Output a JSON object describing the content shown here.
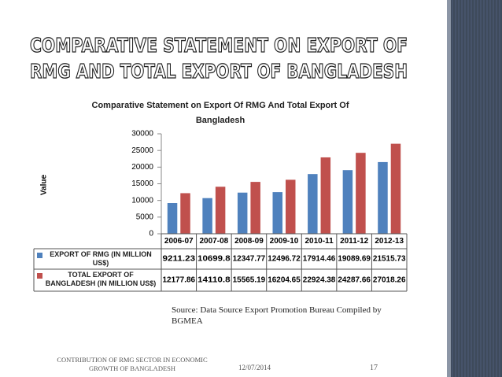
{
  "slide": {
    "heading": [
      "COMPARATIVE STATEMENT ON EXPORT OF",
      "RMG AND TOTAL EXPORT OF BANGLADESH"
    ],
    "source": "Source: Data Source Export Promotion Bureau  Compiled by BGMEA",
    "footer": "CONTRIBUTION OF RMG SECTOR IN ECONOMIC GROWTH OF BANGLADESH",
    "date": "12/07/2014",
    "page": 17
  },
  "chart_data": {
    "type": "bar",
    "title": "Comparative Statement on Export Of RMG And Total Export Of Bangladesh",
    "y_label": "Value",
    "categories": [
      "2006-07",
      "2007-08",
      "2008-09",
      "2009-10",
      "2010-11",
      "2011-12",
      "2012-13"
    ],
    "series": [
      {
        "name": "EXPORT OF RMG (IN MILLION US$)",
        "color": "#4f81bd",
        "values": [
          9211.23,
          10699.8,
          12347.77,
          12496.72,
          17914.46,
          19089.69,
          21515.73
        ]
      },
      {
        "name": "TOTAL EXPORT OF BANGLADESH (IN MILLION US$)",
        "color": "#c0504d",
        "values": [
          12177.86,
          14110.8,
          15565.19,
          16204.65,
          22924.38,
          24287.66,
          27018.26
        ]
      }
    ],
    "ylim": [
      0,
      30000
    ],
    "yticks": [
      0,
      5000,
      10000,
      15000,
      20000,
      25000,
      30000
    ],
    "grid": false,
    "legend": "table"
  }
}
